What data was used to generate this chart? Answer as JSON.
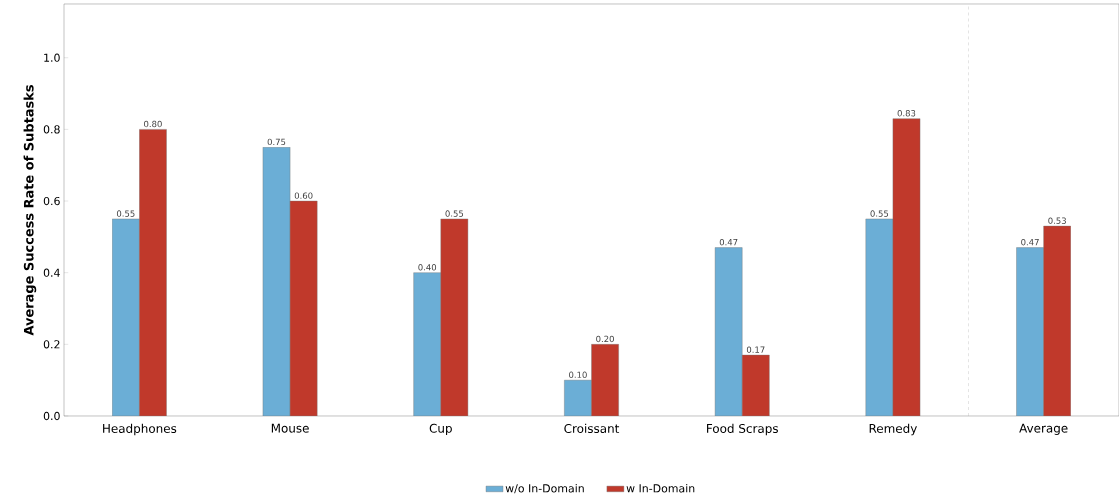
{
  "chart_data": {
    "type": "bar",
    "ylabel": "Average Success Rate of Subtasks",
    "categories": [
      "Headphones",
      "Mouse",
      "Cup",
      "Croissant",
      "Food Scraps",
      "Remedy",
      "Average"
    ],
    "series": [
      {
        "name": "w/o In-Domain",
        "color": "#6baed6",
        "values": [
          0.55,
          0.75,
          0.4,
          0.1,
          0.47,
          0.55,
          0.47
        ],
        "value_labels": [
          "0.55",
          "0.75",
          "0.40",
          "0.10",
          "0.47",
          "0.55",
          "0.47"
        ]
      },
      {
        "name": "w In-Domain",
        "color": "#c0392b",
        "values": [
          0.8,
          0.6,
          0.55,
          0.2,
          0.17,
          0.83,
          0.53
        ],
        "value_labels": [
          "0.80",
          "0.60",
          "0.55",
          "0.20",
          "0.17",
          "0.83",
          "0.53"
        ]
      }
    ],
    "ylim": [
      0,
      1.15
    ],
    "yticks": [
      {
        "value": 0,
        "label": "0.0"
      },
      {
        "value": 0.2,
        "label": "0.2"
      },
      {
        "value": 0.4,
        "label": "0.4"
      },
      {
        "value": 0.6,
        "label": "0.6"
      },
      {
        "value": 0.8,
        "label": "0.8"
      },
      {
        "value": 1.0,
        "label": "1.0"
      }
    ],
    "legend": "bottom",
    "grid": false
  }
}
